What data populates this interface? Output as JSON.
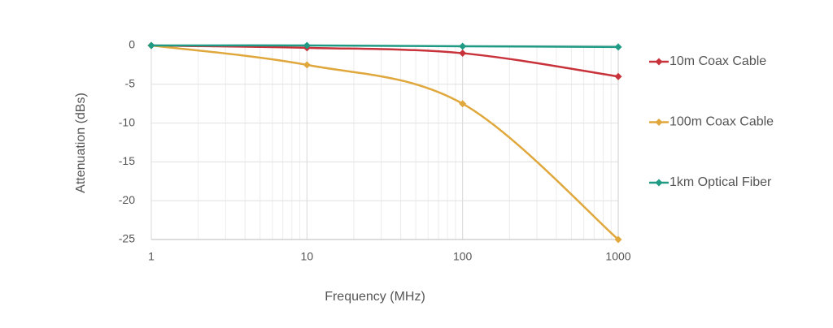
{
  "chart_data": {
    "type": "line",
    "x_label": "Frequency (MHz)",
    "y_label": "Attenuation (dBs)",
    "x": [
      1,
      10,
      100,
      1000
    ],
    "xlim": [
      1,
      1000
    ],
    "xticks": [
      1,
      10,
      100,
      1000
    ],
    "xscale": "log",
    "ylim": [
      -25,
      0
    ],
    "yticks": [
      0,
      -5,
      -10,
      -15,
      -20,
      -25
    ],
    "grid": true,
    "legend": "right",
    "series": [
      {
        "name": "10m Coax Cable",
        "color": "#c8323a",
        "values": [
          0,
          -0.3,
          -1,
          -4
        ]
      },
      {
        "name": "100m Coax Cable",
        "color": "#e0a83c",
        "values": [
          0,
          -2.5,
          -7.5,
          -25
        ]
      },
      {
        "name": "1km Optical Fiber",
        "color": "#1f9b85",
        "values": [
          0,
          0,
          -0.1,
          -0.2
        ]
      }
    ]
  }
}
